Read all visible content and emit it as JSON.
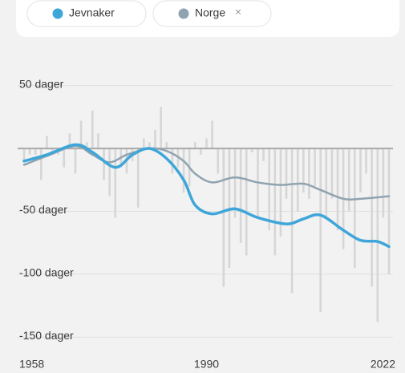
{
  "chart_data": {
    "type": "bar-line",
    "legend": [
      {
        "name": "Jevnaker",
        "color": "#3ea6d9"
      },
      {
        "name": "Norge",
        "color": "#8fa4b0",
        "close": "×"
      }
    ],
    "xlim": [
      1958,
      2022
    ],
    "xticks": [
      1958,
      1990,
      2022
    ],
    "ylim": [
      -160,
      60
    ],
    "yticks": [
      {
        "value": 50,
        "label": "50 dager"
      },
      {
        "value": -50,
        "label": "-50 dager"
      },
      {
        "value": -100,
        "label": "-100 dager"
      },
      {
        "value": -150,
        "label": "-150 dager"
      }
    ],
    "grid": true,
    "bars": {
      "color": "#d6d6d6",
      "x": [
        1958,
        1959,
        1960,
        1961,
        1962,
        1963,
        1964,
        1965,
        1966,
        1967,
        1968,
        1969,
        1970,
        1971,
        1972,
        1973,
        1974,
        1975,
        1976,
        1977,
        1978,
        1979,
        1980,
        1981,
        1982,
        1983,
        1984,
        1985,
        1986,
        1987,
        1988,
        1989,
        1990,
        1991,
        1992,
        1993,
        1994,
        1995,
        1996,
        1997,
        1998,
        1999,
        2000,
        2001,
        2002,
        2003,
        2004,
        2005,
        2006,
        2007,
        2008,
        2009,
        2010,
        2011,
        2012,
        2013,
        2014,
        2015,
        2016,
        2017,
        2018,
        2019,
        2020,
        2021,
        2022
      ],
      "values": [
        -10,
        -5,
        -5,
        -25,
        10,
        -3,
        -5,
        -15,
        12,
        -20,
        22,
        5,
        30,
        12,
        -25,
        -38,
        -55,
        -15,
        -20,
        -10,
        -47,
        8,
        5,
        15,
        33,
        5,
        -20,
        -15,
        -35,
        -30,
        5,
        -5,
        8,
        22,
        -20,
        -110,
        -95,
        -55,
        -75,
        -85,
        -3,
        -55,
        -10,
        -65,
        -85,
        -70,
        -40,
        -115,
        -50,
        -35,
        -40,
        -30,
        -130,
        -55,
        -40,
        -65,
        -80,
        -50,
        -95,
        -35,
        -20,
        -110,
        -138,
        -55,
        -100
      ]
    },
    "series": [
      {
        "name": "Norge",
        "color": "#8fa4b0",
        "x": [
          1958,
          1962,
          1967,
          1970,
          1973,
          1976,
          1980,
          1983,
          1986,
          1988,
          1991,
          1995,
          1999,
          2003,
          2007,
          2010,
          2014,
          2017,
          2022
        ],
        "values": [
          -13,
          -6,
          2,
          -5,
          -11,
          -5,
          0,
          -2,
          -10,
          -20,
          -27,
          -23,
          -27,
          -29,
          -28,
          -33,
          -40,
          -40,
          -38
        ]
      },
      {
        "name": "Jevnaker",
        "color": "#3ea6d9",
        "x": [
          1958,
          1962,
          1967,
          1970,
          1974,
          1977,
          1980,
          1983,
          1986,
          1988,
          1991,
          1995,
          1999,
          2004,
          2007,
          2010,
          2014,
          2017,
          2020,
          2022
        ],
        "values": [
          -10,
          -5,
          3,
          -3,
          -15,
          -5,
          0,
          -8,
          -25,
          -45,
          -52,
          -48,
          -55,
          -60,
          -56,
          -53,
          -65,
          -73,
          -74,
          -78
        ]
      }
    ]
  }
}
